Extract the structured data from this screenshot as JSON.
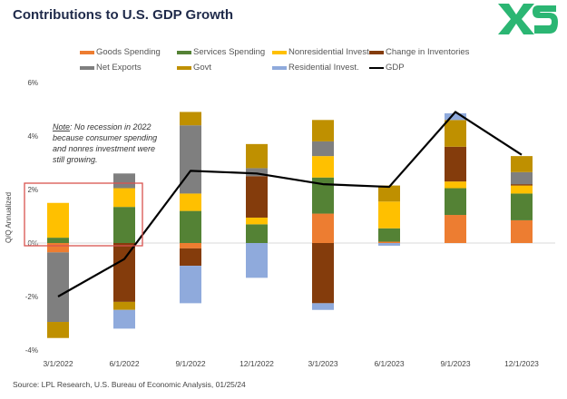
{
  "title": "Contributions to U.S. GDP Growth",
  "logo_text": "XS",
  "source": "Source: LPL Research, U.S. Bureau of Economic Analysis, 01/25/24",
  "colors": {
    "brand": "#2bb673",
    "highlight_box": "#d9534f"
  },
  "chart_data": {
    "type": "bar",
    "stacked": true,
    "title": "Contributions to U.S. GDP Growth",
    "xlabel": "",
    "ylabel": "Q/Q Annualized",
    "ylim": [
      -4,
      6
    ],
    "yticks": [
      -4,
      -2,
      0,
      2,
      4,
      6
    ],
    "ytick_labels": [
      "-4%",
      "-2%",
      "0%",
      "2%",
      "4%",
      "6%"
    ],
    "categories": [
      "3/1/2022",
      "6/1/2022",
      "9/1/2022",
      "12/1/2022",
      "3/1/2023",
      "6/1/2023",
      "9/1/2023",
      "12/1/2023"
    ],
    "series": [
      {
        "name": "Goods Spending",
        "color": "#ED7D31",
        "values": [
          -0.35,
          0,
          -0.2,
          0,
          1.1,
          0.05,
          1.05,
          0.85
        ]
      },
      {
        "name": "Services Spending",
        "color": "#548235",
        "values": [
          0.2,
          1.35,
          1.2,
          0.7,
          1.35,
          0.5,
          1.0,
          1.0
        ]
      },
      {
        "name": "Nonresidential Invest.",
        "color": "#FFC000",
        "values": [
          1.3,
          0.7,
          0.65,
          0.25,
          0.8,
          1.0,
          0.25,
          0.3
        ]
      },
      {
        "name": "Change in Inventories",
        "color": "#843C0C",
        "values": [
          0,
          -2.2,
          -0.65,
          1.55,
          -2.25,
          0,
          1.3,
          0.05
        ]
      },
      {
        "name": "Net Exports",
        "color": "#7F7F7F",
        "values": [
          -2.6,
          0.55,
          2.55,
          0.3,
          0.55,
          0,
          0,
          0.45
        ]
      },
      {
        "name": "Govt",
        "color": "#BF9000",
        "values": [
          -0.6,
          -0.3,
          0.5,
          0.9,
          0.8,
          0.6,
          1.0,
          0.6
        ]
      },
      {
        "name": "Residential Invest.",
        "color": "#8FAADC",
        "values": [
          0,
          -0.7,
          -1.4,
          -1.3,
          -0.25,
          -0.1,
          0.25,
          0
        ]
      }
    ],
    "line_series": {
      "name": "GDP",
      "color": "#000000",
      "values": [
        -2.0,
        -0.6,
        2.7,
        2.6,
        2.2,
        2.1,
        4.9,
        3.3
      ]
    },
    "legend_order": [
      "Goods Spending",
      "Services Spending",
      "Nonresidential Invest.",
      "Change in Inventories",
      "Net Exports",
      "Govt",
      "Residential Invest.",
      "GDP"
    ],
    "legend_position": "top",
    "grid": false,
    "annotation": {
      "label": "Note",
      "text": ": No recession in 2022",
      "lines": [
        "because consumer spending",
        "and nonres investment were",
        "still growing."
      ]
    }
  }
}
